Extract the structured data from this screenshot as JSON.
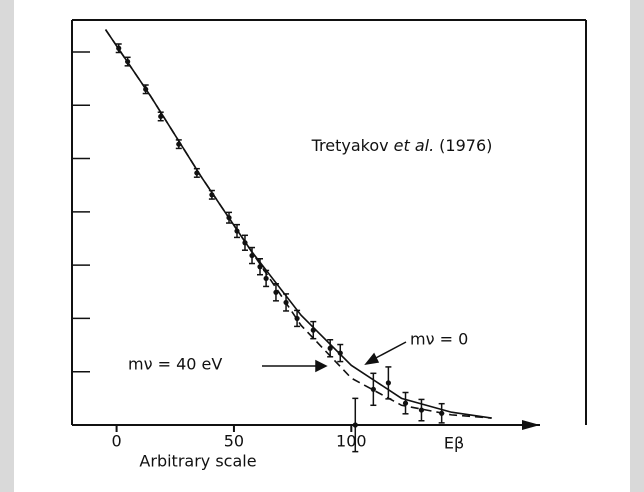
{
  "chart_data": {
    "type": "scatter",
    "title": [
      "Tretyakov",
      "et al.",
      "(1976)"
    ],
    "x_label": "Arbitrary scale",
    "x_end_label": "Eβ",
    "xlim": [
      -19,
      200
    ],
    "ylim": [
      0,
      7.6
    ],
    "xticks": [
      0,
      50,
      100
    ],
    "yticks": [
      1,
      2,
      3,
      4,
      5,
      6,
      7
    ],
    "color": "#111111",
    "points": {
      "x": [
        0.9,
        4.7,
        12.4,
        18.8,
        26.5,
        34.2,
        40.6,
        47.9,
        51.3,
        54.7,
        57.7,
        61.1,
        63.7,
        67.9,
        72.2,
        76.9,
        83.8,
        91.0,
        95.3,
        101.7,
        109.4,
        115.8,
        123.1,
        129.9,
        138.5
      ],
      "y": [
        7.07,
        6.82,
        6.3,
        5.79,
        5.27,
        4.73,
        4.32,
        3.89,
        3.64,
        3.42,
        3.18,
        2.97,
        2.75,
        2.49,
        2.3,
        2.0,
        1.78,
        1.44,
        1.35,
        0,
        0.67,
        0.79,
        0.41,
        0.28,
        0.22
      ],
      "errors": [
        0.08,
        0.08,
        0.08,
        0.08,
        0.08,
        0.08,
        0.08,
        0.1,
        0.12,
        0.14,
        0.15,
        0.15,
        0.15,
        0.16,
        0.16,
        0.15,
        0.16,
        0.16,
        0.16,
        0.5,
        0.3,
        0.3,
        0.2,
        0.2,
        0.18
      ]
    },
    "series": [
      {
        "name": "mν = 0",
        "style": "solid",
        "x": [
          -4.7,
          14.5,
          35.9,
          57.3,
          78.6,
          100,
          121.4,
          142.7,
          159.8
        ],
        "y": [
          7.42,
          6.17,
          4.67,
          3.27,
          2.06,
          1.12,
          0.5,
          0.24,
          0.13
        ]
      },
      {
        "name": "mν = 40 eV",
        "style": "dashed",
        "x": [
          -4.7,
          14.5,
          35.9,
          57.3,
          78.6,
          100,
          121.4,
          142.7,
          159.8
        ],
        "y": [
          7.42,
          6.17,
          4.67,
          3.27,
          1.87,
          0.88,
          0.37,
          0.19,
          0.13
        ]
      }
    ]
  }
}
